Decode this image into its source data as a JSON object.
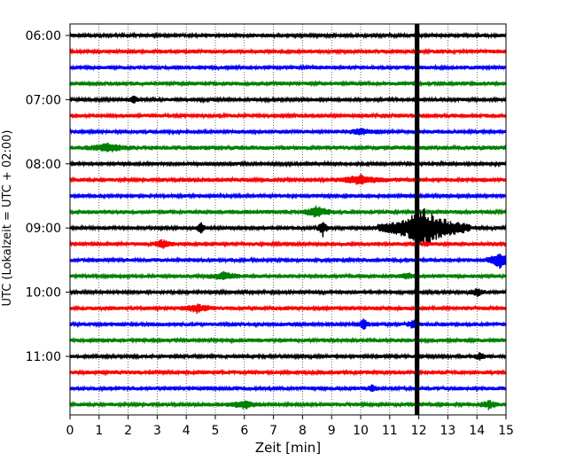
{
  "chart_data": {
    "type": "line",
    "title": "",
    "xlabel": "Zeit  [min]",
    "ylabel": "UTC (Lokalzeit = UTC + 02:00)",
    "xlim": [
      0,
      15
    ],
    "x_ticks": [
      "0",
      "1",
      "2",
      "3",
      "4",
      "5",
      "6",
      "7",
      "8",
      "9",
      "10",
      "11",
      "12",
      "13",
      "14",
      "15"
    ],
    "y_tick_labels": [
      "06:00",
      "07:00",
      "08:00",
      "09:00",
      "10:00",
      "11:00"
    ],
    "grid": "vertical-dotted",
    "trace_interval_minutes": 15,
    "first_trace_utc": "06:00",
    "colors": [
      "#000000",
      "#ff0000",
      "#0000ff",
      "#008000"
    ],
    "traces": [
      {
        "utc": "06:00",
        "color": "#000000",
        "amplitude": 0.8,
        "events": []
      },
      {
        "utc": "06:15",
        "color": "#ff0000",
        "amplitude": 0.9,
        "events": []
      },
      {
        "utc": "06:30",
        "color": "#0000ff",
        "amplitude": 0.9,
        "events": []
      },
      {
        "utc": "06:45",
        "color": "#008000",
        "amplitude": 0.9,
        "events": []
      },
      {
        "utc": "07:00",
        "color": "#000000",
        "amplitude": 0.8,
        "events": [
          {
            "t": 2.2,
            "amp": 3,
            "dur": 0.1
          }
        ]
      },
      {
        "utc": "07:15",
        "color": "#ff0000",
        "amplitude": 0.9,
        "events": []
      },
      {
        "utc": "07:30",
        "color": "#0000ff",
        "amplitude": 0.9,
        "events": [
          {
            "t": 10.0,
            "amp": 2,
            "dur": 0.3
          }
        ]
      },
      {
        "utc": "07:45",
        "color": "#008000",
        "amplitude": 1.0,
        "events": [
          {
            "t": 1.3,
            "amp": 3,
            "dur": 0.4
          }
        ]
      },
      {
        "utc": "08:00",
        "color": "#000000",
        "amplitude": 0.8,
        "events": []
      },
      {
        "utc": "08:15",
        "color": "#ff0000",
        "amplitude": 0.9,
        "events": [
          {
            "t": 10.0,
            "amp": 3,
            "dur": 0.5
          }
        ]
      },
      {
        "utc": "08:30",
        "color": "#0000ff",
        "amplitude": 0.8,
        "events": []
      },
      {
        "utc": "08:45",
        "color": "#008000",
        "amplitude": 0.9,
        "events": [
          {
            "t": 8.5,
            "amp": 4,
            "dur": 0.3
          }
        ]
      },
      {
        "utc": "09:00",
        "color": "#000000",
        "amplitude": 0.8,
        "events": [
          {
            "t": 4.5,
            "amp": 5,
            "dur": 0.08
          },
          {
            "t": 8.7,
            "amp": 6,
            "dur": 0.1
          },
          {
            "t": 12.2,
            "amp": 14,
            "dur": 0.8
          }
        ]
      },
      {
        "utc": "09:15",
        "color": "#ff0000",
        "amplitude": 0.9,
        "events": [
          {
            "t": 3.2,
            "amp": 3,
            "dur": 0.2
          }
        ]
      },
      {
        "utc": "09:30",
        "color": "#0000ff",
        "amplitude": 0.9,
        "events": [
          {
            "t": 14.8,
            "amp": 6,
            "dur": 0.25
          }
        ]
      },
      {
        "utc": "09:45",
        "color": "#008000",
        "amplitude": 0.9,
        "events": [
          {
            "t": 5.3,
            "amp": 3,
            "dur": 0.3
          },
          {
            "t": 11.6,
            "amp": 2,
            "dur": 0.2
          }
        ]
      },
      {
        "utc": "10:00",
        "color": "#000000",
        "amplitude": 0.8,
        "events": [
          {
            "t": 14.0,
            "amp": 3,
            "dur": 0.15
          }
        ]
      },
      {
        "utc": "10:15",
        "color": "#ff0000",
        "amplitude": 0.9,
        "events": [
          {
            "t": 4.4,
            "amp": 3,
            "dur": 0.3
          }
        ]
      },
      {
        "utc": "10:30",
        "color": "#0000ff",
        "amplitude": 0.9,
        "events": [
          {
            "t": 10.1,
            "amp": 4,
            "dur": 0.1
          },
          {
            "t": 11.8,
            "amp": 4,
            "dur": 0.1
          }
        ]
      },
      {
        "utc": "10:45",
        "color": "#008000",
        "amplitude": 0.9,
        "events": []
      },
      {
        "utc": "11:00",
        "color": "#000000",
        "amplitude": 0.8,
        "events": [
          {
            "t": 14.1,
            "amp": 3,
            "dur": 0.1
          }
        ]
      },
      {
        "utc": "11:15",
        "color": "#ff0000",
        "amplitude": 0.9,
        "events": []
      },
      {
        "utc": "11:30",
        "color": "#0000ff",
        "amplitude": 0.9,
        "events": [
          {
            "t": 10.4,
            "amp": 3,
            "dur": 0.08
          }
        ]
      },
      {
        "utc": "11:45",
        "color": "#008000",
        "amplitude": 0.9,
        "events": [
          {
            "t": 6.0,
            "amp": 3,
            "dur": 0.3
          },
          {
            "t": 14.4,
            "amp": 3,
            "dur": 0.2
          }
        ]
      }
    ],
    "blackout": {
      "t_start": 11.86,
      "t_end": 12.02,
      "color": "#000000"
    }
  }
}
